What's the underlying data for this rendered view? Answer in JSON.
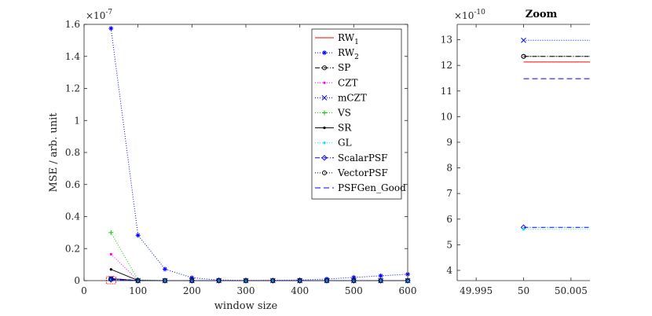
{
  "chart_data": [
    {
      "type": "line",
      "title": "",
      "xlabel": "window size",
      "ylabel": "MSE / arb. unit",
      "y_exponent_label": "×10",
      "y_exponent_power": "-7",
      "xlim": [
        0,
        600
      ],
      "ylim": [
        0,
        1.6
      ],
      "x_ticks": [
        "0",
        "100",
        "200",
        "300",
        "400",
        "500",
        "600"
      ],
      "y_ticks": [
        "0",
        "0.2",
        "0.4",
        "0.6",
        "0.8",
        "1",
        "1.2",
        "1.4",
        "1.6"
      ],
      "grid": false,
      "legend_position": "top-right",
      "series": [
        {
          "name": "RW",
          "name_sub": "1",
          "color": "#ff0000",
          "dash": "",
          "marker": "none",
          "x": [
            50,
            100,
            150,
            200,
            250,
            300,
            350,
            400,
            450,
            500,
            550,
            600
          ],
          "y": [
            0.0121,
            0,
            0,
            0,
            0,
            0,
            0,
            0,
            0,
            0,
            0,
            0
          ]
        },
        {
          "name": "RW",
          "name_sub": "2",
          "color": "#0000ff",
          "dash": "1,2",
          "marker": "star",
          "x": [
            50,
            100,
            150,
            200,
            250,
            300,
            350,
            400,
            450,
            500,
            550,
            600
          ],
          "y": [
            1.575,
            0.283,
            0.072,
            0.018,
            0.004,
            0.001,
            0.002,
            0.004,
            0.01,
            0.02,
            0.03,
            0.04
          ]
        },
        {
          "name": "SP",
          "color": "#000000",
          "dash": "6,2,1,2",
          "marker": "circle",
          "x": [
            50,
            100,
            150,
            200,
            250,
            300,
            350,
            400,
            450,
            500,
            550,
            600
          ],
          "y": [
            0.0123,
            0,
            0,
            0,
            0,
            0,
            0,
            0,
            0,
            0,
            0,
            0
          ]
        },
        {
          "name": "CZT",
          "color": "#ff00ff",
          "dash": "1,2",
          "marker": "dot",
          "x": [
            50,
            100,
            150,
            200,
            250,
            300,
            350,
            400,
            450,
            500,
            550,
            600
          ],
          "y": [
            0.165,
            0.002,
            0,
            0,
            0,
            0,
            0,
            0,
            0,
            0,
            0,
            0
          ]
        },
        {
          "name": "mCZT",
          "color": "#0000ff",
          "dash": "1,2",
          "marker": "x",
          "x": [
            50,
            100,
            150,
            200,
            250,
            300,
            350,
            400,
            450,
            500,
            550,
            600
          ],
          "y": [
            0.013,
            0,
            0,
            0,
            0,
            0,
            0,
            0,
            0,
            0,
            0,
            0
          ]
        },
        {
          "name": "VS",
          "color": "#00cc00",
          "dash": "1,2",
          "marker": "plus",
          "x": [
            50,
            100,
            150,
            200,
            250,
            300,
            350,
            400,
            450,
            500,
            550,
            600
          ],
          "y": [
            0.3,
            0.005,
            0,
            0,
            0,
            0,
            0,
            0,
            0,
            0,
            0,
            0
          ]
        },
        {
          "name": "SR",
          "color": "#000000",
          "dash": "",
          "marker": "dot",
          "x": [
            50,
            100,
            150,
            200,
            250,
            300,
            350,
            400,
            450,
            500,
            550,
            600
          ],
          "y": [
            0.07,
            0.001,
            0,
            0,
            0,
            0,
            0,
            0,
            0,
            0,
            0,
            0
          ]
        },
        {
          "name": "GL",
          "color": "#00e5ff",
          "dash": "1,2",
          "marker": "dot",
          "x": [
            50,
            100,
            150,
            200,
            250,
            300,
            350,
            400,
            450,
            500,
            550,
            600
          ],
          "y": [
            0.0056,
            0,
            0,
            0,
            0,
            0,
            0,
            0,
            0,
            0,
            0,
            0
          ]
        },
        {
          "name": "ScalarPSF",
          "color": "#0000ff",
          "dash": "6,2,1,2",
          "marker": "diamond",
          "x": [
            50,
            100,
            150,
            200,
            250,
            300,
            350,
            400,
            450,
            500,
            550,
            600
          ],
          "y": [
            0.0057,
            0,
            0,
            0,
            0,
            0,
            0,
            0,
            0,
            0,
            0,
            0
          ]
        },
        {
          "name": "VectorPSF",
          "color": "#000000",
          "dash": "1,2",
          "marker": "circle",
          "x": [
            50,
            100,
            150,
            200,
            250,
            300,
            350,
            400,
            450,
            500,
            550,
            600
          ],
          "y": [
            0.0123,
            0,
            0,
            0,
            0,
            0,
            0,
            0,
            0,
            0,
            0,
            0
          ]
        },
        {
          "name": "PSFGen_Good",
          "color": "#0000ff",
          "dash": "7,4",
          "marker": "none",
          "x": [
            50,
            100,
            150,
            200,
            250,
            300,
            350,
            400,
            450,
            500,
            550,
            600
          ],
          "y": [
            0.0115,
            0,
            0,
            0,
            0,
            0,
            0,
            0,
            0,
            0,
            0,
            0
          ]
        }
      ]
    },
    {
      "type": "line",
      "title": "Zoom",
      "xlabel": "",
      "ylabel": "",
      "y_exponent_label": "×10",
      "y_exponent_power": "-10",
      "xlim": [
        49.993,
        50.007
      ],
      "ylim": [
        3.6,
        13.6
      ],
      "x_ticks": [
        {
          "value": 49.995,
          "label": "49.995"
        },
        {
          "value": 50,
          "label": "50"
        },
        {
          "value": 50.005,
          "label": "50.005"
        }
      ],
      "y_ticks": [
        "4",
        "5",
        "6",
        "7",
        "8",
        "9",
        "10",
        "11",
        "12",
        "13"
      ],
      "grid": false,
      "lines": [
        {
          "name": "mCZT",
          "y": 12.98,
          "color": "#0000ff",
          "dash": "1,2",
          "marker": "x"
        },
        {
          "name": "SP",
          "y": 12.35,
          "color": "#000000",
          "dash": "6,2,1,2",
          "marker": "circle"
        },
        {
          "name": "VectorPSF",
          "y": 12.35,
          "color": "#000000",
          "dash": "1,2",
          "marker": "circle"
        },
        {
          "name": "RW1",
          "y": 12.13,
          "color": "#ff0000",
          "dash": "",
          "marker": "none"
        },
        {
          "name": "PSFGen_Good",
          "y": 11.48,
          "color": "#0000ff",
          "dash": "7,4",
          "marker": "none"
        },
        {
          "name": "ScalarPSF",
          "y": 5.68,
          "color": "#0000ff",
          "dash": "6,2,1,2",
          "marker": "diamond"
        },
        {
          "name": "GL",
          "y": 5.6,
          "color": "#00e5ff",
          "dash": "1,2",
          "marker": "dot"
        }
      ]
    }
  ]
}
